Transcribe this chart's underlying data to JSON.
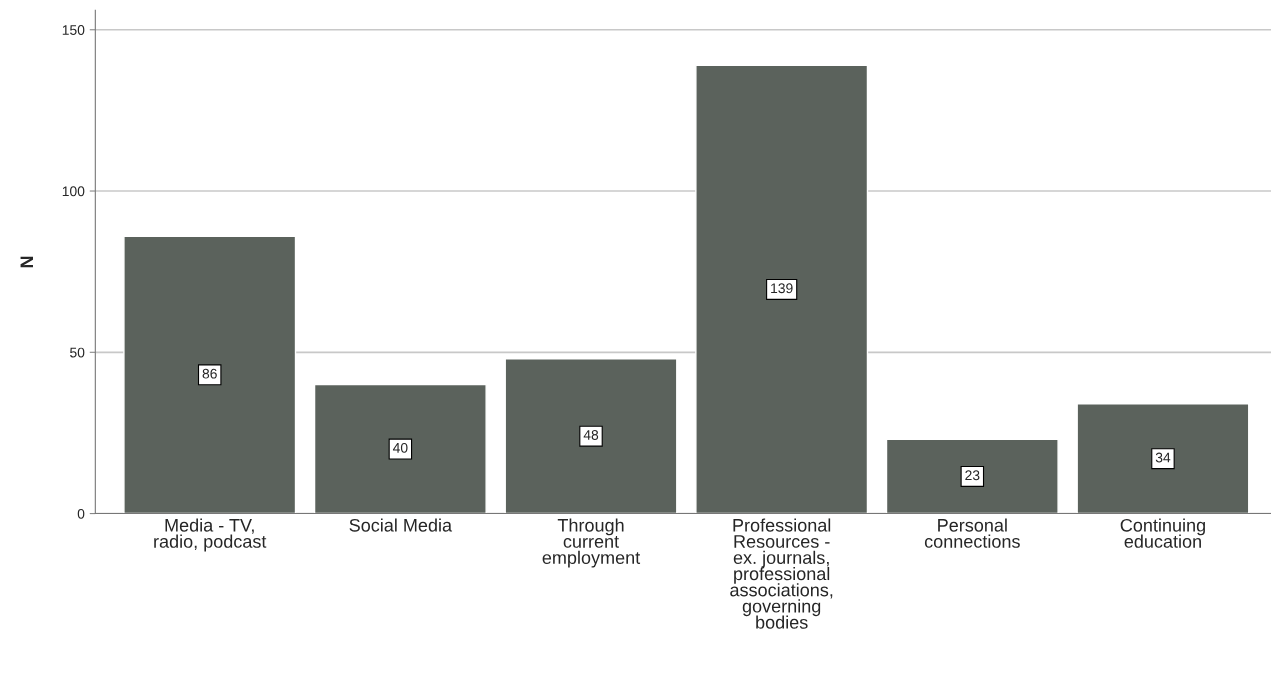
{
  "chart_data": {
    "type": "bar",
    "ylabel": "N",
    "categories": [
      "Media - TV,\nradio, podcast",
      "Social Media",
      "Through\ncurrent\nemployment",
      "Professional\nResources -\nex. journals,\nprofessional\nassociations,\ngoverning\nbodies",
      "Personal\nconnections",
      "Continuing\neducation"
    ],
    "values": [
      86,
      40,
      48,
      139,
      23,
      34
    ],
    "color": "#5b625c",
    "ylim": [
      0,
      156
    ],
    "yticks": [
      0,
      50,
      100,
      150
    ],
    "grid": "y",
    "data_labels": true
  }
}
